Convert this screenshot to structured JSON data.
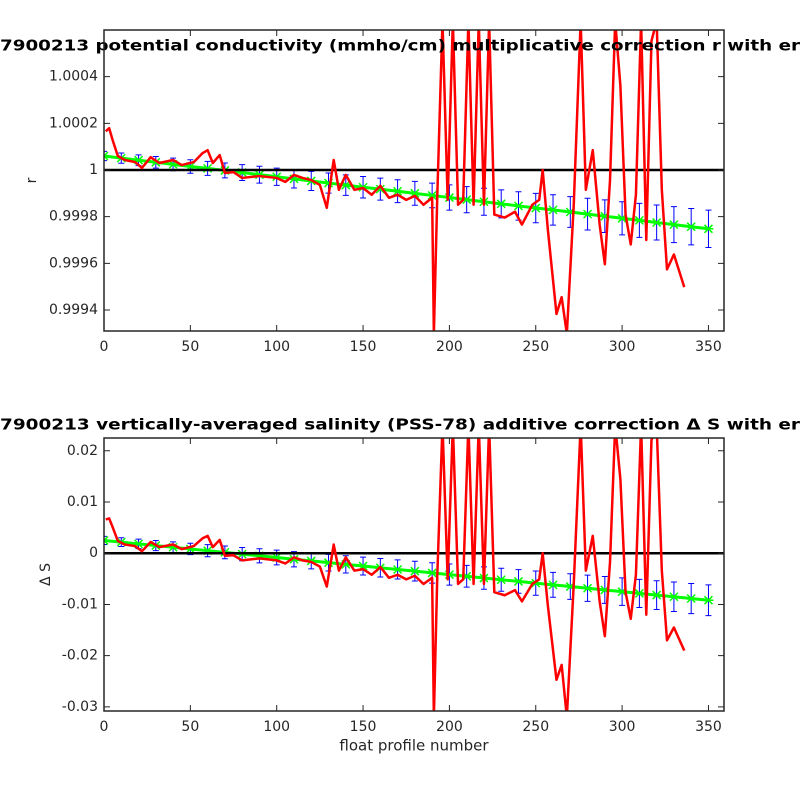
{
  "chart_data": [
    {
      "type": "line",
      "title": "7900213 potential conductivity (mmho/cm) multiplicative correction r with er",
      "ylabel": "r",
      "xlim": [
        0,
        359
      ],
      "xticks": [
        0,
        50,
        100,
        150,
        200,
        250,
        300,
        350
      ],
      "ylim": [
        0.99931,
        1.0006
      ],
      "yticks": [
        0.9994,
        0.9996,
        0.9998,
        1,
        1.0002,
        1.0004
      ],
      "reference_line": 1,
      "reference_color": "#000000",
      "fit": {
        "color": "#00ff00",
        "error_color": "#0000ff",
        "x": [
          0,
          10,
          20,
          30,
          40,
          50,
          60,
          70,
          80,
          90,
          100,
          110,
          120,
          130,
          140,
          150,
          160,
          170,
          180,
          190,
          200,
          210,
          220,
          230,
          240,
          250,
          260,
          270,
          280,
          290,
          300,
          310,
          320,
          330,
          340,
          350
        ],
        "values": [
          1.00006,
          1.000051,
          1.000042,
          1.000033,
          1.000024,
          1.000015,
          1.000007,
          0.999998,
          0.999989,
          0.99998,
          0.999971,
          0.999962,
          0.999953,
          0.999944,
          0.999935,
          0.999926,
          0.999918,
          0.999909,
          0.9999,
          0.999891,
          0.999882,
          0.999873,
          0.999864,
          0.999855,
          0.999846,
          0.999837,
          0.999829,
          0.99982,
          0.999811,
          0.999802,
          0.999793,
          0.999784,
          0.999775,
          0.999766,
          0.999757,
          0.999748
        ],
        "errors": [
          2e-05,
          2.2e-05,
          2.3e-05,
          2.5e-05,
          2.7e-05,
          2.9e-05,
          3e-05,
          3.2e-05,
          3.4e-05,
          3.6e-05,
          3.7e-05,
          3.9e-05,
          4.1e-05,
          4.3e-05,
          4.4e-05,
          4.6e-05,
          4.7e-05,
          4.9e-05,
          5.1e-05,
          5.3e-05,
          5.4e-05,
          5.6e-05,
          5.8e-05,
          6e-05,
          6.1e-05,
          6.3e-05,
          6.5e-05,
          6.6e-05,
          6.8e-05,
          7e-05,
          7.1e-05,
          7.3e-05,
          7.5e-05,
          7.7e-05,
          7.8e-05,
          8e-05
        ]
      },
      "series": [
        {
          "color": "#ff0000",
          "x": [
            1,
            3,
            5,
            8,
            12,
            18,
            22,
            27,
            32,
            40,
            45,
            52,
            57,
            60,
            63,
            67,
            70,
            75,
            80,
            90,
            100,
            105,
            110,
            115,
            120,
            125,
            129,
            133,
            136,
            140,
            145,
            150,
            155,
            160,
            165,
            170,
            175,
            180,
            185,
            190,
            191,
            193,
            196,
            199,
            202,
            205,
            208,
            211,
            214,
            217,
            220,
            223,
            226,
            232,
            238,
            242,
            248,
            252,
            254,
            257,
            262,
            265,
            268,
            272,
            276,
            279,
            283,
            287,
            290,
            293,
            296,
            299,
            302,
            305,
            308,
            311,
            314,
            317,
            320,
            323,
            326,
            330,
            336
          ],
          "values": [
            1.000166,
            1.000179,
            1.000128,
            1.00006,
            1.000043,
            1.000034,
            1.000009,
            1.000055,
            1.00003,
            1.000043,
            1.000021,
            1.000034,
            1.000072,
            1.000085,
            1.00003,
            1.000064,
            0.999987,
            0.999991,
            0.999966,
            0.999974,
            0.999966,
            0.999949,
            0.999979,
            0.999966,
            0.999957,
            0.999936,
            0.999838,
            1.000043,
            0.999915,
            0.999979,
            0.999915,
            0.999923,
            0.999894,
            0.999932,
            0.999881,
            0.999894,
            0.999872,
            0.999889,
            0.999851,
            0.999881,
            0.999298,
            0.999894,
            1.000638,
            0.999872,
            1.000638,
            0.999851,
            0.999872,
            1.000638,
            0.999851,
            1.000638,
            0.999851,
            1.000638,
            0.999809,
            0.999796,
            0.999821,
            0.999766,
            0.999851,
            0.999872,
            1.0,
            0.999745,
            0.999383,
            0.999455,
            0.999298,
            0.999851,
            1.000638,
            0.999915,
            1.000085,
            0.999766,
            0.999596,
            0.999957,
            1.000638,
            1.000362,
            0.999809,
            0.999681,
            0.999894,
            1.000638,
            0.9997,
            1.000553,
            1.000638,
            0.999915,
            0.999574,
            0.999638,
            0.999498
          ]
        }
      ]
    },
    {
      "type": "line",
      "title": "7900213 vertically-averaged salinity (PSS-78) additive correction Δ S with er",
      "ylabel": "Δ S",
      "xlabel": "float profile number",
      "xlim": [
        0,
        359
      ],
      "xticks": [
        0,
        50,
        100,
        150,
        200,
        250,
        300,
        350
      ],
      "ylim": [
        -0.0308,
        0.0225
      ],
      "yticks": [
        -0.03,
        -0.02,
        -0.01,
        0,
        0.01,
        0.02
      ],
      "reference_line": 0,
      "reference_color": "#000000",
      "fit": {
        "color": "#00ff00",
        "error_color": "#0000ff",
        "x": [
          0,
          10,
          20,
          30,
          40,
          50,
          60,
          70,
          80,
          90,
          100,
          110,
          120,
          130,
          140,
          150,
          160,
          170,
          180,
          190,
          200,
          210,
          220,
          230,
          240,
          250,
          260,
          270,
          280,
          290,
          300,
          310,
          320,
          330,
          340,
          350
        ],
        "values": [
          0.0025,
          0.00217,
          0.00183,
          0.0015,
          0.00117,
          0.00083,
          0.0005,
          0.00017,
          -0.00017,
          -0.0005,
          -0.00083,
          -0.00117,
          -0.0015,
          -0.00184,
          -0.00217,
          -0.0025,
          -0.00284,
          -0.00317,
          -0.0035,
          -0.00384,
          -0.00417,
          -0.0045,
          -0.00484,
          -0.00517,
          -0.0055,
          -0.00584,
          -0.00617,
          -0.0065,
          -0.00684,
          -0.00717,
          -0.0075,
          -0.00784,
          -0.00817,
          -0.0085,
          -0.00884,
          -0.00917
        ],
        "errors": [
          0.0008,
          0.00086,
          0.00093,
          0.00099,
          0.00105,
          0.00111,
          0.00118,
          0.00124,
          0.0013,
          0.00137,
          0.00143,
          0.00149,
          0.00155,
          0.00162,
          0.00168,
          0.00174,
          0.00181,
          0.00187,
          0.00193,
          0.00199,
          0.00206,
          0.00212,
          0.00218,
          0.00225,
          0.00231,
          0.00237,
          0.00243,
          0.0025,
          0.00256,
          0.00262,
          0.00269,
          0.00275,
          0.00281,
          0.00288,
          0.00294,
          0.003
        ]
      },
      "series": [
        {
          "color": "#ff0000",
          "x": [
            1,
            3,
            5,
            8,
            12,
            18,
            22,
            27,
            32,
            40,
            45,
            52,
            57,
            60,
            63,
            67,
            70,
            75,
            80,
            90,
            100,
            105,
            110,
            115,
            120,
            125,
            129,
            133,
            136,
            140,
            145,
            150,
            155,
            160,
            165,
            170,
            175,
            180,
            185,
            190,
            191,
            193,
            196,
            199,
            202,
            205,
            208,
            211,
            214,
            217,
            220,
            223,
            226,
            232,
            238,
            242,
            248,
            252,
            254,
            257,
            262,
            265,
            268,
            272,
            276,
            279,
            283,
            287,
            290,
            293,
            296,
            299,
            302,
            305,
            308,
            311,
            314,
            317,
            320,
            323,
            326,
            330,
            336
          ],
          "values": [
            0.0066,
            0.0068,
            0.0051,
            0.0024,
            0.0017,
            0.0014,
            0.0004,
            0.0022,
            0.0012,
            0.0017,
            0.0008,
            0.0014,
            0.0029,
            0.0034,
            0.0012,
            0.0026,
            -0.0005,
            -0.0004,
            -0.0014,
            -0.001,
            -0.0014,
            -0.002,
            -0.0008,
            -0.0014,
            -0.0017,
            -0.0026,
            -0.0065,
            0.0017,
            -0.0034,
            -0.0008,
            -0.0034,
            -0.0031,
            -0.0042,
            -0.0027,
            -0.0048,
            -0.0042,
            -0.0051,
            -0.0044,
            -0.006,
            -0.0048,
            -0.032,
            -0.0042,
            0.025,
            -0.0051,
            0.025,
            -0.006,
            -0.0051,
            0.025,
            -0.006,
            0.025,
            -0.006,
            0.025,
            -0.0076,
            -0.0082,
            -0.0072,
            -0.0094,
            -0.006,
            -0.0051,
            0,
            -0.0102,
            -0.0247,
            -0.0218,
            -0.032,
            -0.006,
            0.025,
            -0.0034,
            0.0034,
            -0.0094,
            -0.0162,
            -0.0017,
            0.025,
            0.0145,
            -0.0076,
            -0.0128,
            -0.0042,
            0.025,
            -0.012,
            0.0221,
            0.025,
            -0.0034,
            -0.017,
            -0.0145,
            -0.019
          ]
        }
      ]
    }
  ]
}
